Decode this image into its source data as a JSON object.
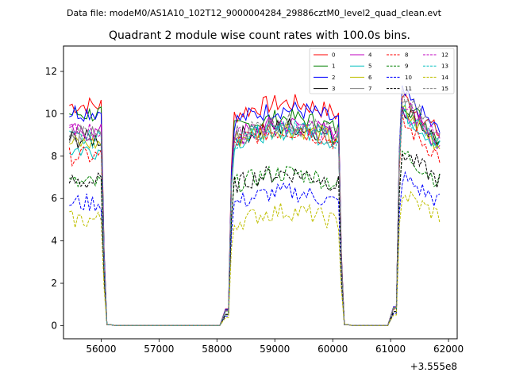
{
  "header": {
    "data_file": "Data file: modeM0/AS1A10_102T12_9000004284_29886cztM0_level2_quad_clean.evt"
  },
  "chart_data": {
    "type": "line",
    "title": "Quadrant 2 module wise count rates with 100.0s bins.",
    "xlabel": "",
    "ylabel": "",
    "offset_text": "+3.555e8",
    "xlim": [
      55350,
      62150
    ],
    "ylim": [
      -0.62,
      13.2
    ],
    "xticks": [
      56000,
      57000,
      58000,
      59000,
      60000,
      61000,
      62000
    ],
    "xtick_labels": [
      "56000",
      "57000",
      "58000",
      "59000",
      "60000",
      "61000",
      "62000"
    ],
    "yticks": [
      0,
      2,
      4,
      6,
      8,
      10,
      12
    ],
    "ytick_labels": [
      "0",
      "2",
      "4",
      "6",
      "8",
      "10",
      "12"
    ],
    "legend_position": "top-right",
    "segments": [
      {
        "x_start": 55450,
        "x_end": 56150,
        "rising_x": null,
        "falling_x": 56050
      },
      {
        "x_start": 58150,
        "x_end": 60250,
        "rising_x": 58250,
        "falling_x": 60150
      },
      {
        "x_start": 61050,
        "x_end": 61850,
        "rising_x": 61150,
        "falling_x": null
      }
    ],
    "zero_x": [
      56150,
      56250,
      56350,
      56450,
      56550,
      56650,
      56750,
      56850,
      56950,
      57050,
      57150,
      57250,
      57350,
      57450,
      57550,
      57650,
      57750,
      57850,
      57950,
      58050,
      58150,
      60250,
      60350,
      60450,
      60550,
      60650,
      60750,
      60850,
      60950,
      61050
    ],
    "series": [
      {
        "name": "0",
        "color": "#ff0000",
        "dash": false,
        "levels": [
          10.4,
          9.9,
          11.0
        ]
      },
      {
        "name": "1",
        "color": "#008000",
        "dash": false,
        "levels": [
          10.0,
          9.2,
          10.8
        ]
      },
      {
        "name": "2",
        "color": "#0000ff",
        "dash": false,
        "levels": [
          10.1,
          9.6,
          11.1
        ]
      },
      {
        "name": "3",
        "color": "#000000",
        "dash": false,
        "levels": [
          8.8,
          8.8,
          10.5
        ]
      },
      {
        "name": "4",
        "color": "#bf00bf",
        "dash": false,
        "levels": [
          9.1,
          8.9,
          10.4
        ]
      },
      {
        "name": "5",
        "color": "#00bfbf",
        "dash": false,
        "levels": [
          8.3,
          8.6,
          10.3
        ]
      },
      {
        "name": "6",
        "color": "#bfbf00",
        "dash": false,
        "levels": [
          8.6,
          8.7,
          10.3
        ]
      },
      {
        "name": "7",
        "color": "#808080",
        "dash": false,
        "levels": [
          9.0,
          8.8,
          10.6
        ]
      },
      {
        "name": "8",
        "color": "#ff0000",
        "dash": true,
        "levels": [
          8.0,
          8.6,
          9.7
        ]
      },
      {
        "name": "9",
        "color": "#008000",
        "dash": true,
        "levels": [
          6.7,
          6.6,
          8.3
        ]
      },
      {
        "name": "10",
        "color": "#0000ff",
        "dash": true,
        "levels": [
          5.8,
          5.7,
          7.1
        ]
      },
      {
        "name": "11",
        "color": "#000000",
        "dash": true,
        "levels": [
          6.8,
          6.6,
          8.3
        ]
      },
      {
        "name": "12",
        "color": "#bf00bf",
        "dash": true,
        "levels": [
          9.2,
          8.8,
          10.7
        ]
      },
      {
        "name": "13",
        "color": "#00bfbf",
        "dash": true,
        "levels": [
          8.8,
          8.7,
          10.3
        ]
      },
      {
        "name": "14",
        "color": "#bfbf00",
        "dash": true,
        "levels": [
          5.0,
          4.8,
          6.3
        ]
      },
      {
        "name": "15",
        "color": "#808080",
        "dash": true,
        "levels": [
          9.0,
          9.0,
          11.0
        ]
      }
    ]
  }
}
